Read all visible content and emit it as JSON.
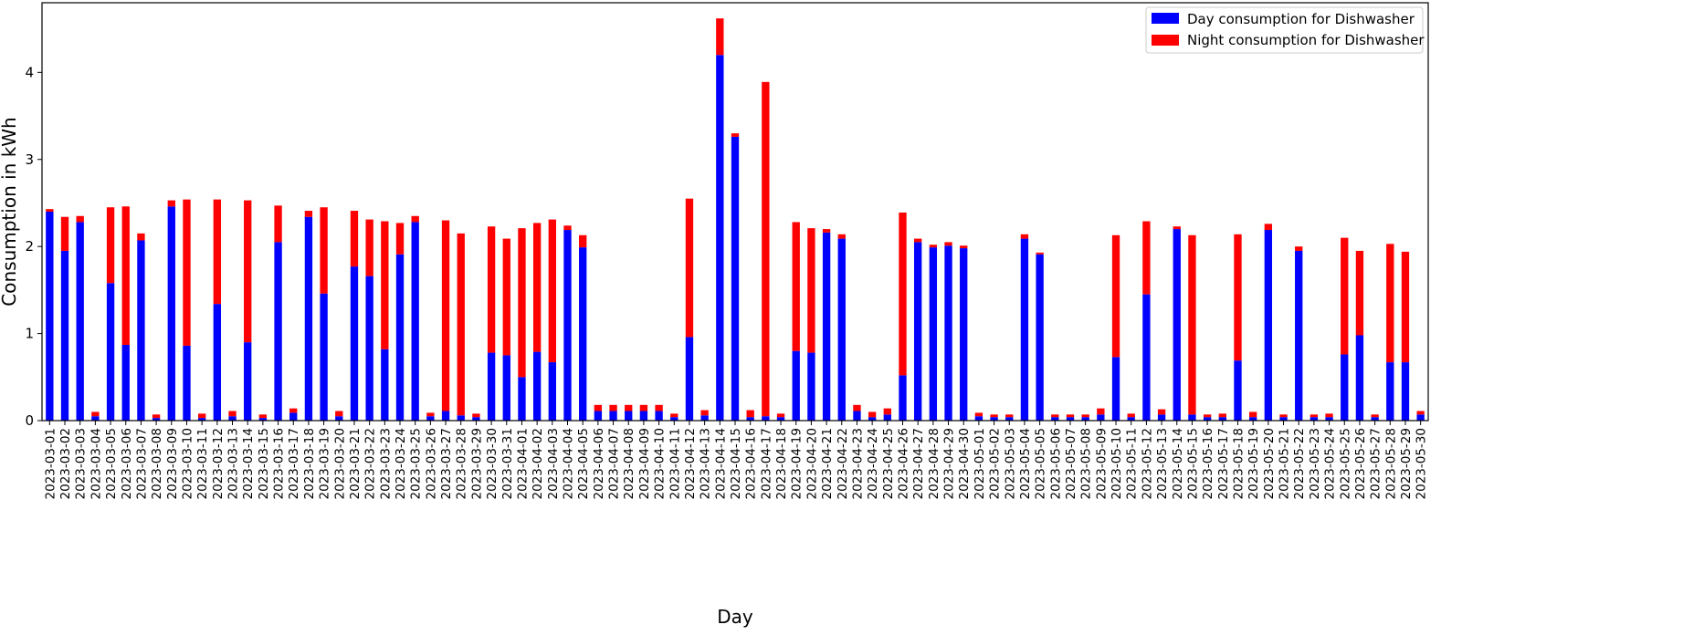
{
  "chart_data": {
    "type": "bar",
    "stacked": true,
    "title": "",
    "xlabel": "Day",
    "ylabel": "Consumption in kWh",
    "ylim": [
      0,
      4.8
    ],
    "yticks": [
      0,
      1,
      2,
      3,
      4
    ],
    "grid": false,
    "legend_position": "top-right",
    "categories": [
      "2023-03-01",
      "2023-03-02",
      "2023-03-03",
      "2023-03-04",
      "2023-03-05",
      "2023-03-06",
      "2023-03-07",
      "2023-03-08",
      "2023-03-09",
      "2023-03-10",
      "2023-03-11",
      "2023-03-12",
      "2023-03-13",
      "2023-03-14",
      "2023-03-15",
      "2023-03-16",
      "2023-03-17",
      "2023-03-18",
      "2023-03-19",
      "2023-03-20",
      "2023-03-21",
      "2023-03-22",
      "2023-03-23",
      "2023-03-24",
      "2023-03-25",
      "2023-03-26",
      "2023-03-27",
      "2023-03-28",
      "2023-03-29",
      "2023-03-30",
      "2023-03-31",
      "2023-04-01",
      "2023-04-02",
      "2023-04-03",
      "2023-04-04",
      "2023-04-05",
      "2023-04-06",
      "2023-04-07",
      "2023-04-08",
      "2023-04-09",
      "2023-04-10",
      "2023-04-11",
      "2023-04-12",
      "2023-04-13",
      "2023-04-14",
      "2023-04-15",
      "2023-04-16",
      "2023-04-17",
      "2023-04-18",
      "2023-04-19",
      "2023-04-20",
      "2023-04-21",
      "2023-04-22",
      "2023-04-23",
      "2023-04-24",
      "2023-04-25",
      "2023-04-26",
      "2023-04-27",
      "2023-04-28",
      "2023-04-29",
      "2023-04-30",
      "2023-05-01",
      "2023-05-02",
      "2023-05-03",
      "2023-05-04",
      "2023-05-05",
      "2023-05-06",
      "2023-05-07",
      "2023-05-08",
      "2023-05-09",
      "2023-05-10",
      "2023-05-11",
      "2023-05-12",
      "2023-05-13",
      "2023-05-14",
      "2023-05-15",
      "2023-05-16",
      "2023-05-17",
      "2023-05-18",
      "2023-05-19",
      "2023-05-20",
      "2023-05-21",
      "2023-05-22",
      "2023-05-23",
      "2023-05-24",
      "2023-05-25",
      "2023-05-26",
      "2023-05-27",
      "2023-05-28",
      "2023-05-29",
      "2023-05-30"
    ],
    "series": [
      {
        "name": "Day consumption for Dishwasher",
        "color": "#0000ff",
        "values": [
          2.4,
          1.95,
          2.28,
          0.05,
          1.58,
          0.87,
          2.07,
          0.03,
          2.46,
          0.86,
          0.03,
          1.34,
          0.05,
          0.9,
          0.03,
          2.05,
          0.09,
          2.34,
          1.46,
          0.05,
          1.77,
          1.66,
          0.82,
          1.91,
          2.28,
          0.05,
          0.11,
          0.06,
          0.04,
          0.78,
          0.75,
          0.5,
          0.79,
          0.67,
          2.19,
          1.99,
          0.11,
          0.11,
          0.11,
          0.11,
          0.11,
          0.04,
          0.96,
          0.06,
          4.2,
          3.26,
          0.04,
          0.05,
          0.04,
          0.8,
          0.78,
          2.16,
          2.09,
          0.11,
          0.04,
          0.07,
          0.52,
          2.05,
          1.99,
          2.01,
          1.98,
          0.05,
          0.04,
          0.04,
          2.09,
          1.91,
          0.04,
          0.04,
          0.04,
          0.07,
          0.73,
          0.04,
          1.45,
          0.07,
          2.2,
          0.07,
          0.04,
          0.04,
          0.69,
          0.04,
          2.19,
          0.04,
          1.95,
          0.04,
          0.04,
          0.76,
          0.98,
          0.04,
          0.67,
          0.67,
          0.07
        ]
      },
      {
        "name": "Night consumption for Dishwasher",
        "color": "#ff0000",
        "values": [
          0.03,
          0.39,
          0.07,
          0.05,
          0.87,
          1.59,
          0.08,
          0.04,
          0.07,
          1.68,
          0.05,
          1.2,
          0.06,
          1.63,
          0.04,
          0.42,
          0.05,
          0.07,
          0.99,
          0.06,
          0.64,
          0.65,
          1.47,
          0.36,
          0.07,
          0.04,
          2.19,
          2.09,
          0.04,
          1.45,
          1.34,
          1.71,
          1.48,
          1.64,
          0.05,
          0.14,
          0.07,
          0.07,
          0.07,
          0.07,
          0.07,
          0.04,
          1.59,
          0.06,
          0.42,
          0.04,
          0.08,
          3.84,
          0.04,
          1.48,
          1.43,
          0.04,
          0.05,
          0.07,
          0.06,
          0.07,
          1.87,
          0.04,
          0.03,
          0.04,
          0.03,
          0.04,
          0.03,
          0.03,
          0.05,
          0.02,
          0.03,
          0.03,
          0.03,
          0.07,
          1.4,
          0.04,
          0.84,
          0.06,
          0.03,
          2.06,
          0.03,
          0.04,
          1.45,
          0.06,
          0.07,
          0.03,
          0.05,
          0.03,
          0.04,
          1.34,
          0.97,
          0.03,
          1.36,
          1.27,
          0.04
        ]
      }
    ]
  }
}
